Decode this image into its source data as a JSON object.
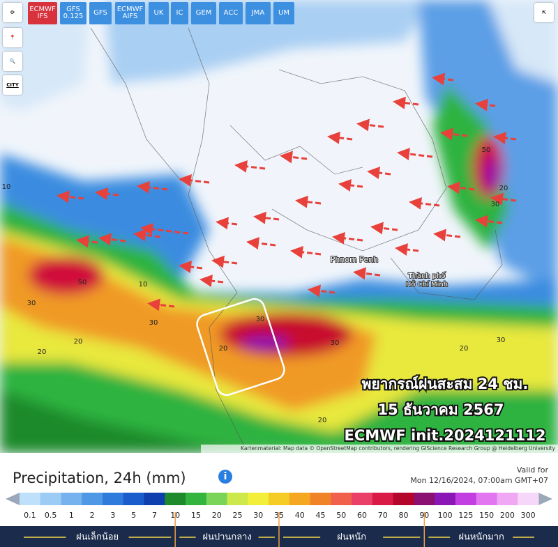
{
  "toolbar": {
    "models": [
      "ECMWF\nIFS",
      "GFS\n0.125",
      "GFS",
      "ECMWF\nAIFS",
      "UK",
      "IC",
      "GEM",
      "ACC",
      "JMA",
      "UM"
    ],
    "city": "CITY"
  },
  "map": {
    "places": [
      "Phnom Penh",
      "Thành phố",
      "Hồ Chí Minh"
    ],
    "contour_labels": [
      30,
      20,
      50,
      30,
      20,
      30,
      20,
      30,
      20,
      20,
      30,
      20,
      30,
      50,
      10,
      10
    ],
    "overlay": [
      "พยากรณ์ฝนสะสม 24 ชม.",
      "15 ธันวาคม 2567",
      "ECMWF init.2024121112"
    ],
    "attribution": "Kartenmaterial: Map data © OpenStreetMap contributors, rendering GIScience Research Group @ Heidelberg University"
  },
  "legend": {
    "title": "Precipitation, 24h (mm)",
    "valid_label": "Valid for",
    "valid_time": "Mon 12/16/2024, 07:00am GMT+07",
    "stops": [
      0.1,
      0.5,
      1,
      2,
      3,
      5,
      7,
      10,
      15,
      20,
      25,
      30,
      35,
      40,
      45,
      50,
      60,
      70,
      80,
      90,
      100,
      125,
      150,
      200,
      300
    ],
    "colors": [
      "#bfe0fa",
      "#9ccbf4",
      "#76b3ee",
      "#4f98e6",
      "#2f7bdc",
      "#1a5ccb",
      "#0f3fae",
      "#1e8a2c",
      "#33b43f",
      "#7ad45a",
      "#cde84a",
      "#f2ee3a",
      "#f5cc25",
      "#f5a722",
      "#f08326",
      "#f0604a",
      "#ea3f66",
      "#d81a45",
      "#b4062a",
      "#8c0f72",
      "#8a17b5",
      "#c23ee2",
      "#e276f0",
      "#f0a8f5",
      "#f6d6f9"
    ],
    "categories": [
      "ฝนเล็กน้อย",
      "ฝนปานกลาง",
      "ฝนหนัก",
      "ฝนหนักมาก"
    ]
  }
}
